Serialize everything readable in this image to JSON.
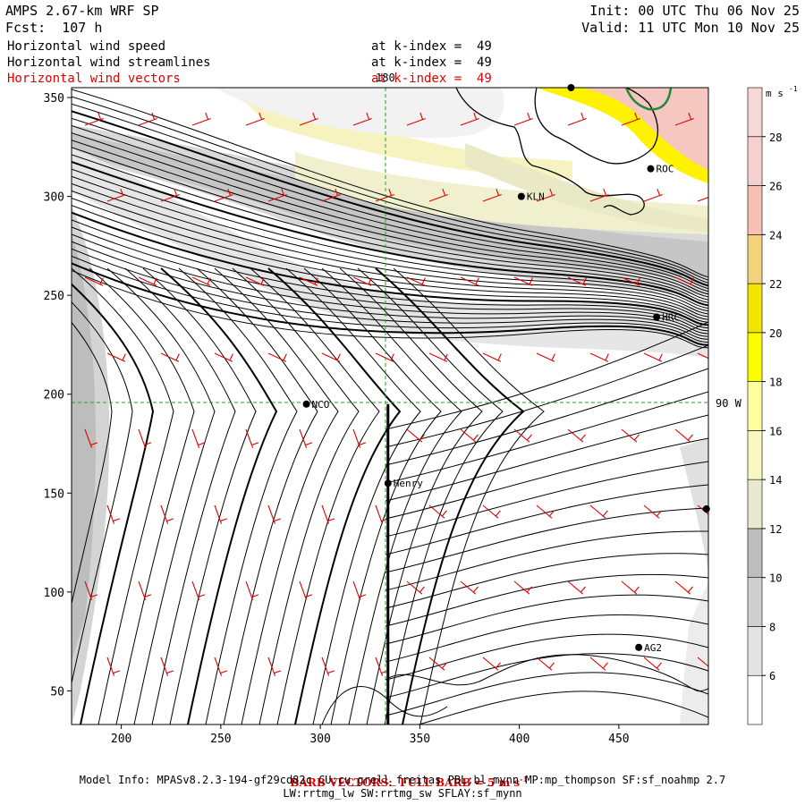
{
  "header": {
    "model": "AMPS 2.67-km WRF SP",
    "init": "Init: 00 UTC Thu 06 Nov 25",
    "fcst": "Fcst:  107 h",
    "valid": "Valid: 11 UTC Mon 10 Nov 25"
  },
  "fields": [
    {
      "name": "Horizontal wind speed",
      "level": "at k-index =  49",
      "color": "#000000"
    },
    {
      "name": "Horizontal wind streamlines",
      "level": "at k-index =  49",
      "color": "#000000"
    },
    {
      "name": "Horizontal wind vectors",
      "level": "at k-index =  49",
      "color": "#e00000"
    }
  ],
  "chart_data": {
    "type": "heatmap",
    "title": "Horizontal wind speed / streamlines / vectors at k-index = 49",
    "units": "m s-1",
    "xlim": [
      175,
      495
    ],
    "ylim": [
      33,
      355
    ],
    "x_ticks": [
      200,
      250,
      300,
      350,
      400,
      450
    ],
    "y_ticks": [
      50,
      100,
      150,
      200,
      250,
      300,
      350
    ],
    "grid_lines": [
      {
        "label": "180",
        "axis": "x",
        "value": 333
      },
      {
        "label": "90 W",
        "axis": "y",
        "value": 195
      }
    ],
    "colorbar": {
      "unit_label": "m s",
      "unit_exp": "-1",
      "levels": [
        6,
        8,
        10,
        12,
        14,
        16,
        18,
        20,
        22,
        24,
        26,
        28
      ],
      "colors": [
        "#ffffff",
        "#e4e4e4",
        "#cfcfcf",
        "#bdbdbd",
        "#e9e9cf",
        "#f8f8c4",
        "#ffffa0",
        "#fcfc00",
        "#f0e400",
        "#f2d27a",
        "#f6c1b2",
        "#f6d0ce",
        "#f7d8d8"
      ]
    },
    "stations": [
      {
        "name": "KLN",
        "x": 401,
        "y": 300
      },
      {
        "name": "ROC",
        "x": 466,
        "y": 314
      },
      {
        "name": "HRC",
        "x": 469,
        "y": 239
      },
      {
        "name": "NCO",
        "x": 293,
        "y": 195
      },
      {
        "name": "Henry",
        "x": 334,
        "y": 155
      },
      {
        "name": "AG2",
        "x": 460,
        "y": 72
      },
      {
        "name": "",
        "x": 494,
        "y": 142
      },
      {
        "name": "",
        "x": 426,
        "y": 355
      }
    ],
    "transect": {
      "x": 334,
      "y_start": 33,
      "y_end": 195
    },
    "barb_note": "BARB VECTORS:  FULL BARB = 5 m s",
    "barb_note_exp": "-1"
  },
  "footer": {
    "model_info": "Model Info: MPASv8.2.3-194-gf29cd82c CU:cu_grell_freitas PBL:bl_mynn MP:mp_thompson SF:sf_noahmp 2.7",
    "model_info2": "LW:rrtmg_lw SW:rrtmg_sw SFLAY:sf_mynn"
  }
}
